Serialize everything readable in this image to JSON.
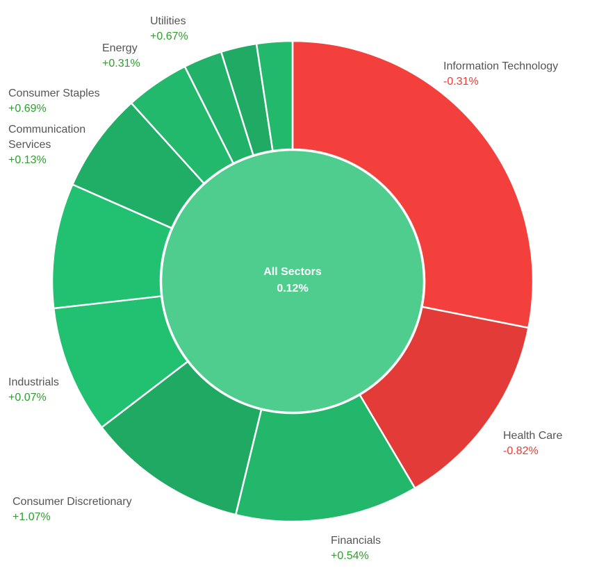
{
  "chart_data": {
    "type": "sunburst",
    "center": {
      "label": "All Sectors",
      "value": "0.12%",
      "color": "#4fcd8e"
    },
    "slices": [
      {
        "name": "Information Technology",
        "change": "-0.31%",
        "weight_pct": 28.1,
        "color": "#f4403c"
      },
      {
        "name": "Health Care",
        "change": "-0.82%",
        "weight_pct": 13.4,
        "color": "#e33b37"
      },
      {
        "name": "Financials",
        "change": "+0.54%",
        "weight_pct": 12.3,
        "color": "#23b76c"
      },
      {
        "name": "Consumer Discretionary",
        "change": "+1.07%",
        "weight_pct": 10.8,
        "color": "#1fa963"
      },
      {
        "name": "Industrials",
        "change": "+0.07%",
        "weight_pct": 8.6,
        "color": "#22c171"
      },
      {
        "name": "",
        "change": "",
        "weight_pct": 8.4,
        "color": "#22c171"
      },
      {
        "name": "Communication Services",
        "change": "+0.13%",
        "weight_pct": 6.7,
        "color": "#20ae66"
      },
      {
        "name": "Consumer Staples",
        "change": "+0.69%",
        "weight_pct": 4.3,
        "color": "#22b96c"
      },
      {
        "name": "Energy",
        "change": "+0.31%",
        "weight_pct": 2.6,
        "color": "#21b168"
      },
      {
        "name": "Utilities",
        "change": "+0.67%",
        "weight_pct": 2.4,
        "color": "#20aa64"
      },
      {
        "name": "",
        "change": "",
        "weight_pct": 2.4,
        "color": "#22b96c"
      }
    ]
  }
}
